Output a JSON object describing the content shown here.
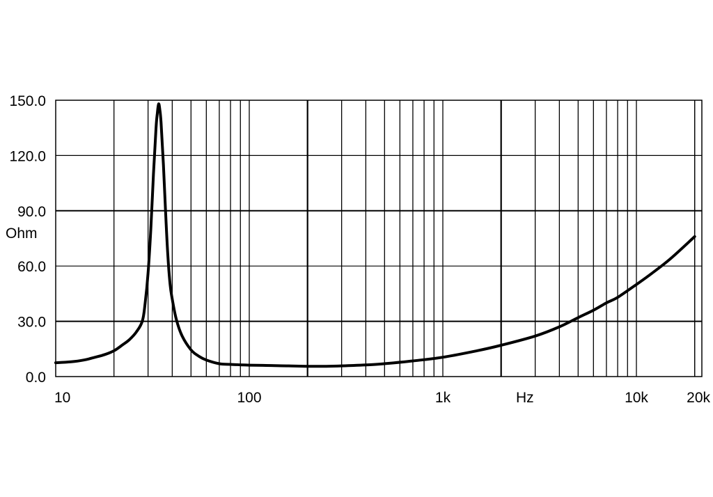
{
  "chart_data": {
    "type": "line",
    "title": "",
    "xlabel": "Hz",
    "ylabel": "Ohm",
    "x_scale": "log",
    "xlim": [
      10,
      20000
    ],
    "ylim": [
      0,
      150
    ],
    "grid": true,
    "legend": "none",
    "colors": {
      "line": "#000000",
      "grid": "#000000",
      "background": "#ffffff"
    },
    "x_ticks": [
      {
        "value": 10,
        "label": "10"
      },
      {
        "value": 100,
        "label": "100"
      },
      {
        "value": 1000,
        "label": "1k"
      },
      {
        "value": 10000,
        "label": "10k"
      },
      {
        "value": 20000,
        "label": "20k"
      }
    ],
    "y_ticks": [
      {
        "value": 0,
        "label": "0.0"
      },
      {
        "value": 30,
        "label": "30.0"
      },
      {
        "value": 60,
        "label": "60.0"
      },
      {
        "value": 90,
        "label": "90.0"
      },
      {
        "value": 120,
        "label": "120.0"
      },
      {
        "value": 150,
        "label": "150.0"
      }
    ],
    "series": [
      {
        "x": [
          10,
          12,
          14,
          16,
          18,
          20,
          22,
          24,
          26,
          28,
          29,
          30,
          31,
          32,
          33,
          33.5,
          34,
          34.5,
          35,
          36,
          37,
          38,
          39,
          40,
          42,
          45,
          50,
          55,
          60,
          70,
          80,
          90,
          100,
          130,
          160,
          200,
          250,
          300,
          400,
          500,
          700,
          1000,
          1500,
          2000,
          3000,
          4000,
          5000,
          6000,
          7000,
          8000,
          10000,
          12000,
          15000,
          20000
        ],
        "y": [
          7.5,
          8,
          9,
          10.5,
          12,
          14,
          17,
          20,
          24,
          30,
          40,
          56,
          80,
          110,
          135,
          143,
          148,
          145,
          138,
          115,
          88,
          65,
          50,
          42,
          31,
          22,
          14.5,
          11,
          9,
          7,
          6.6,
          6.4,
          6.2,
          6,
          5.8,
          5.6,
          5.6,
          5.8,
          6.3,
          7,
          8.5,
          10.5,
          14,
          17,
          22,
          27,
          32,
          36,
          40,
          43,
          50,
          56,
          64,
          76
        ]
      }
    ]
  }
}
